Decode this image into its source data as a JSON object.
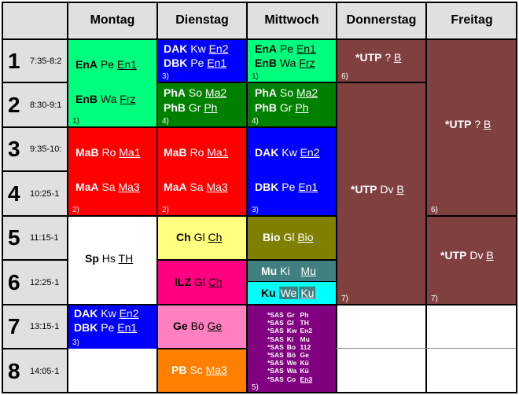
{
  "header": {
    "days": [
      "Montag",
      "Dienstag",
      "Mittwoch",
      "Donnerstag",
      "Freitag"
    ]
  },
  "periods": [
    {
      "num": "1",
      "time": "7:35-8:2"
    },
    {
      "num": "2",
      "time": "8:30-9:1"
    },
    {
      "num": "3",
      "time": "9:35-10:"
    },
    {
      "num": "4",
      "time": "10:25-1"
    },
    {
      "num": "5",
      "time": "11:15-1"
    },
    {
      "num": "6",
      "time": "12:25-1"
    },
    {
      "num": "7",
      "time": "13:15-1"
    },
    {
      "num": "8",
      "time": "14:05-1"
    }
  ],
  "cells": {
    "mo_12": {
      "l1": {
        "c": "EnA",
        "t": "Pe",
        "r": "En1"
      },
      "l2": {
        "c": "EnB",
        "t": "Wa",
        "r": "Frz"
      },
      "note": "1)"
    },
    "mo_34": {
      "l1": {
        "c": "MaB",
        "t": "Ro",
        "r": "Ma1"
      },
      "l2": {
        "c": "MaA",
        "t": "Sa",
        "r": "Ma3"
      },
      "note": "2)"
    },
    "mo_56": {
      "l1": {
        "c": "Sp",
        "t": "Hs",
        "r": "TH"
      }
    },
    "mo_7": {
      "l1": {
        "c": "DAK",
        "t": "Kw",
        "r": "En2"
      },
      "l2": {
        "c": "DBK",
        "t": "Pe",
        "r": "En1"
      },
      "note": "3)"
    },
    "di_1": {
      "l1": {
        "c": "DAK",
        "t": "Kw",
        "r": "En2"
      },
      "l2": {
        "c": "DBK",
        "t": "Pe",
        "r": "En1"
      },
      "note": "3)"
    },
    "di_2": {
      "l1": {
        "c": "PhA",
        "t": "So",
        "r": "Ma2"
      },
      "l2": {
        "c": "PhB",
        "t": "Gr",
        "r": "Ph"
      },
      "note": "4)"
    },
    "di_34": {
      "l1": {
        "c": "MaB",
        "t": "Ro",
        "r": "Ma1"
      },
      "l2": {
        "c": "MaA",
        "t": "Sa",
        "r": "Ma3"
      },
      "note": "2)"
    },
    "di_5": {
      "l1": {
        "c": "Ch",
        "t": "Gl",
        "r": "Ch"
      }
    },
    "di_6": {
      "l1": {
        "c": "ILZ",
        "t": "Gl",
        "r": "Ch"
      }
    },
    "di_7": {
      "l1": {
        "c": "Ge",
        "t": "Bö",
        "r": "Ge"
      }
    },
    "di_8": {
      "l1": {
        "c": "PB",
        "t": "Sc",
        "r": "Ma3"
      }
    },
    "mi_1": {
      "l1": {
        "c": "EnA",
        "t": "Pe",
        "r": "En1"
      },
      "l2": {
        "c": "EnB",
        "t": "Wa",
        "r": "Frz"
      },
      "note": "1)"
    },
    "mi_2": {
      "l1": {
        "c": "PhA",
        "t": "So",
        "r": "Ma2"
      },
      "l2": {
        "c": "PhB",
        "t": "Gr",
        "r": "Ph"
      },
      "note": "4)"
    },
    "mi_34": {
      "l1": {
        "c": "DAK",
        "t": "Kw",
        "r": "En2"
      },
      "l2": {
        "c": "DBK",
        "t": "Pe",
        "r": "En1"
      },
      "note": "3)"
    },
    "mi_5": {
      "l1": {
        "c": "Bio",
        "t": "Gl",
        "r": "Bio"
      }
    },
    "mi_6a": {
      "l1": {
        "c": "Mu",
        "t": "Ki",
        "r": "Mu"
      }
    },
    "mi_6b": {
      "l1": {
        "c": "Ku",
        "t": "We",
        "r": "Ku"
      }
    },
    "mi_78": {
      "rows": [
        {
          "c": "*SAS",
          "t": "Gr",
          "r": "Ph"
        },
        {
          "c": "*SAS",
          "t": "Gl",
          "r": "TH"
        },
        {
          "c": "*SAS",
          "t": "Kw",
          "r": "En2"
        },
        {
          "c": "*SAS",
          "t": "Ki",
          "r": "Mu"
        },
        {
          "c": "*SAS",
          "t": "Bo",
          "r": "112"
        },
        {
          "c": "*SAS",
          "t": "Bö",
          "r": "Ge"
        },
        {
          "c": "*SAS",
          "t": "We",
          "r": "Kü"
        },
        {
          "c": "*SAS",
          "t": "Wa",
          "r": "Kü"
        },
        {
          "c": "*SAS",
          "t": "Co",
          "r": "En3"
        }
      ],
      "note": "5)"
    },
    "do_1": {
      "l1": {
        "c": "*UTP",
        "t": "?",
        "r": "B"
      },
      "note": "6)"
    },
    "do_26": {
      "l1": {
        "c": "*UTP",
        "t": "Dv",
        "r": "B"
      },
      "note": "7)"
    },
    "fr_14": {
      "l1": {
        "c": "*UTP",
        "t": "?",
        "r": "B"
      },
      "note": "6)"
    },
    "fr_56": {
      "l1": {
        "c": "*UTP",
        "t": "Dv",
        "r": "B"
      },
      "note": "7)"
    }
  },
  "colors": {
    "header_bg": "#e0e0e0",
    "green": "#00ff7f",
    "red": "#ff0000",
    "blue": "#0000ff",
    "dark_green": "#008000",
    "yellow": "#ffff80",
    "magenta": "#ff0080",
    "olive": "#808000",
    "teal": "#408080",
    "cyan": "#00ffff",
    "pink": "#ff80c0",
    "orange": "#ff8000",
    "purple": "#800080",
    "maroon": "#804040"
  }
}
